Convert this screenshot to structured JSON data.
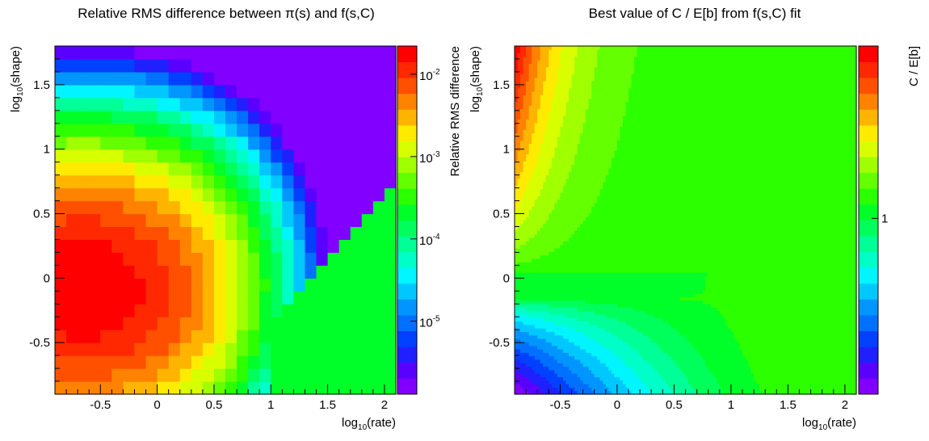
{
  "chart_data": [
    {
      "type": "heatmap",
      "title": "Relative RMS difference between π(s) and f(s,C)",
      "xlabel": {
        "base": "log",
        "sub": "10",
        "rest": "(rate)"
      },
      "ylabel": {
        "base": "log",
        "sub": "10",
        "rest": "(shape)"
      },
      "zlabel": "Relative RMS difference",
      "xlim": [
        -0.9,
        2.1
      ],
      "ylim": [
        -0.9,
        1.8
      ],
      "z_scale": "log",
      "zlim": [
        1.3e-06,
        0.022
      ],
      "x_ticks": [
        {
          "v": -0.5,
          "t": "-0.5"
        },
        {
          "v": 0,
          "t": "0"
        },
        {
          "v": 0.5,
          "t": "0.5"
        },
        {
          "v": 1,
          "t": "1"
        },
        {
          "v": 1.5,
          "t": "1.5"
        },
        {
          "v": 2,
          "t": "2"
        }
      ],
      "y_ticks": [
        {
          "v": -0.5,
          "t": "-0.5"
        },
        {
          "v": 0,
          "t": "0"
        },
        {
          "v": 0.5,
          "t": "0.5"
        },
        {
          "v": 1,
          "t": "1"
        },
        {
          "v": 1.5,
          "t": "1.5"
        }
      ],
      "z_ticks": [
        {
          "v": 1e-05,
          "base": "10",
          "exp": "-5"
        },
        {
          "v": 0.0001,
          "base": "10",
          "exp": "-4"
        },
        {
          "v": 0.001,
          "base": "10",
          "exp": "-3"
        },
        {
          "v": 0.01,
          "base": "10",
          "exp": "-2"
        }
      ],
      "grid": {
        "nx": 30,
        "ny": 27
      },
      "sample_values": [
        {
          "x": -0.6,
          "y": 0.0,
          "z": 0.02
        },
        {
          "x": 0.0,
          "y": 0.0,
          "z": 0.004
        },
        {
          "x": 0.7,
          "y": 0.0,
          "z": 0.0003
        },
        {
          "x": 1.2,
          "y": 0.0,
          "z": 3e-05
        },
        {
          "x": 1.5,
          "y": -0.6,
          "z": 0.0002
        },
        {
          "x": 2.0,
          "y": 1.7,
          "z": 1.5e-06
        },
        {
          "x": 0.3,
          "y": 1.5,
          "z": 5e-05
        }
      ]
    },
    {
      "type": "heatmap",
      "title": "Best value of C / E[b] from f(s,C) fit",
      "xlabel": {
        "base": "log",
        "sub": "10",
        "rest": "(rate)"
      },
      "ylabel": {
        "base": "log",
        "sub": "10",
        "rest": "(shape)"
      },
      "zlabel": "C / E[b]",
      "xlim": [
        -0.9,
        2.1
      ],
      "ylim": [
        -0.9,
        1.8
      ],
      "z_scale": "log",
      "x_ticks": [
        {
          "v": -0.5,
          "t": "-0.5"
        },
        {
          "v": 0,
          "t": "0"
        },
        {
          "v": 0.5,
          "t": "0.5"
        },
        {
          "v": 1,
          "t": "1"
        },
        {
          "v": 1.5,
          "t": "1.5"
        },
        {
          "v": 2,
          "t": "2"
        }
      ],
      "y_ticks": [
        {
          "v": -0.5,
          "t": "-0.5"
        },
        {
          "v": 0,
          "t": "0"
        },
        {
          "v": 0.5,
          "t": "0.5"
        },
        {
          "v": 1,
          "t": "1"
        },
        {
          "v": 1.5,
          "t": "1.5"
        }
      ],
      "z_ticks": [
        {
          "v": 1,
          "t": "1"
        }
      ],
      "grid": {
        "nx": 120,
        "ny": 100
      },
      "sample_values": [
        {
          "x": 1.0,
          "y": 0.5,
          "z": 1.0
        },
        {
          "x": -0.85,
          "y": 1.7,
          "z": "max"
        },
        {
          "x": -0.85,
          "y": -0.85,
          "z": "min"
        }
      ]
    }
  ],
  "colors": {
    "palette": [
      "#8100ff",
      "#5a00ff",
      "#2020ff",
      "#0040ff",
      "#0070ff",
      "#0095ff",
      "#00c8ff",
      "#00f5ff",
      "#00ffc8",
      "#00ff96",
      "#00ff5a",
      "#00ff28",
      "#2cff00",
      "#64ff00",
      "#a0ff00",
      "#d8ff00",
      "#ffeb00",
      "#ffb400",
      "#ff8200",
      "#ff5000",
      "#ff2800",
      "#ff0000"
    ],
    "axis": "#000000",
    "background": "#ffffff"
  }
}
